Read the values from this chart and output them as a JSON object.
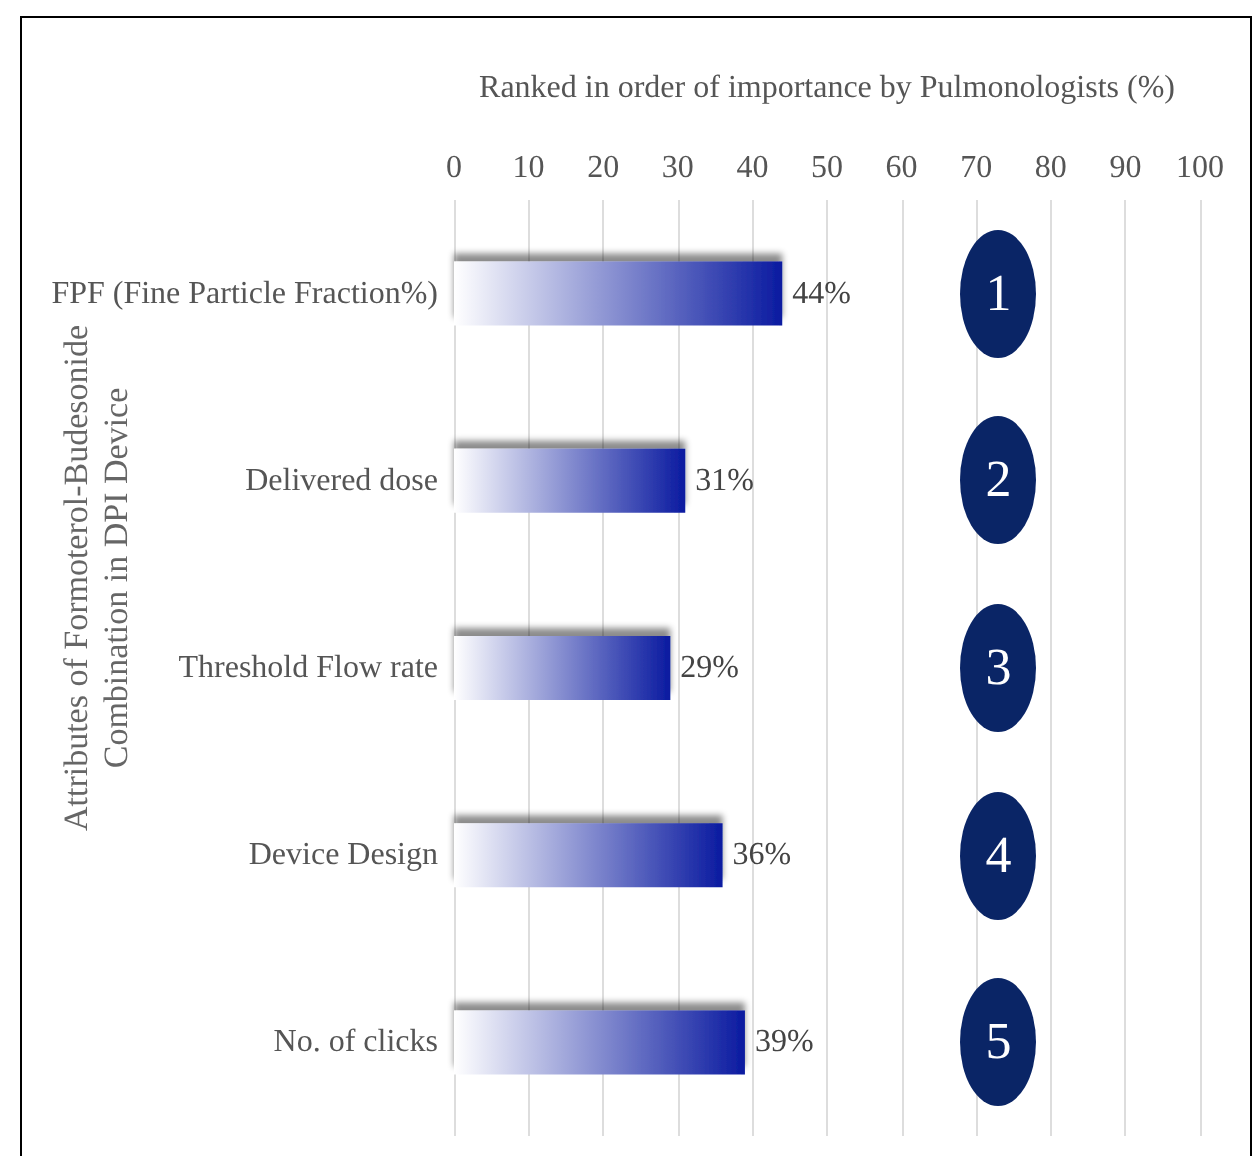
{
  "chart_data": {
    "type": "bar",
    "orientation": "horizontal",
    "xlabel": "Ranked in order of importance by Pulmonologists (%)",
    "ylabel": "Attributes of Formoterol-Budesonide\nCombination in DPI Device",
    "categories": [
      "FPF (Fine Particle Fraction%)",
      "Delivered dose",
      "Threshold Flow rate",
      "Device Design",
      "No. of clicks"
    ],
    "values": [
      44,
      31,
      29,
      36,
      39
    ],
    "value_labels": [
      "44%",
      "31%",
      "29%",
      "36%",
      "39%"
    ],
    "color": "#0a1aa0",
    "xlim": [
      0,
      100
    ],
    "xticks": [
      0,
      10,
      20,
      30,
      40,
      50,
      60,
      70,
      80,
      90,
      100
    ],
    "grid": "x",
    "annotations": [
      "1",
      "2",
      "3",
      "4",
      "5"
    ]
  }
}
